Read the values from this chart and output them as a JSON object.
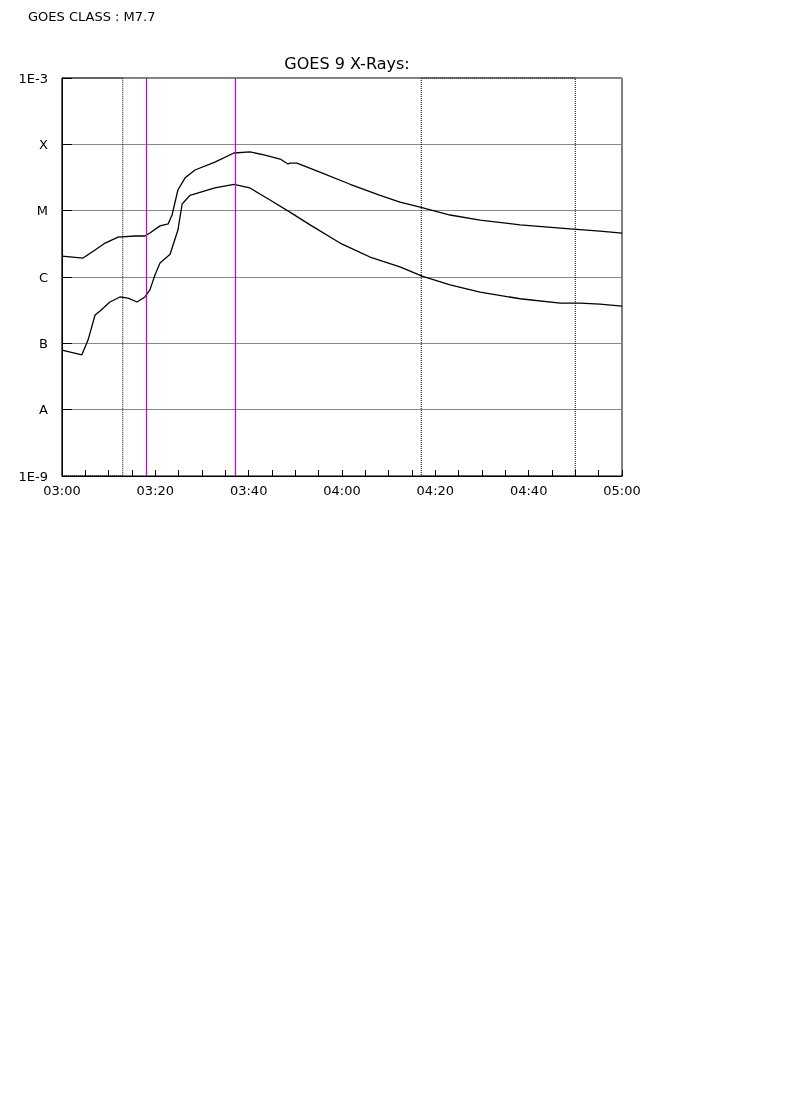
{
  "chart_data": {
    "type": "line",
    "title": "GOES 9 X-Rays:",
    "annotations": [
      "GOES CLASS : M7.7"
    ],
    "xlim": [
      3,
      5
    ],
    "xticks": [
      {
        "value": 3,
        "label": "03:00"
      },
      {
        "value": 3.0833,
        "label": null
      },
      {
        "value": 3.1667,
        "label": null
      },
      {
        "value": 3.25,
        "label": null
      },
      {
        "value": 3.3333,
        "label": "03:20"
      },
      {
        "value": 3.4167,
        "label": null
      },
      {
        "value": 3.5,
        "label": null
      },
      {
        "value": 3.5833,
        "label": null
      },
      {
        "value": 3.6667,
        "label": "03:40"
      },
      {
        "value": 3.75,
        "label": null
      },
      {
        "value": 3.8333,
        "label": null
      },
      {
        "value": 3.9167,
        "label": null
      },
      {
        "value": 4,
        "label": "04:00"
      },
      {
        "value": 4.0833,
        "label": null
      },
      {
        "value": 4.1667,
        "label": null
      },
      {
        "value": 4.25,
        "label": null
      },
      {
        "value": 4.3333,
        "label": "04:20"
      },
      {
        "value": 4.4167,
        "label": null
      },
      {
        "value": 4.5,
        "label": null
      },
      {
        "value": 4.5833,
        "label": null
      },
      {
        "value": 4.6667,
        "label": "04:40"
      },
      {
        "value": 4.75,
        "label": null
      },
      {
        "value": 4.8333,
        "label": null
      },
      {
        "value": 4.9167,
        "label": null
      },
      {
        "value": 5,
        "label": "05:00"
      }
    ],
    "ylim": [
      1e-09,
      0.001
    ],
    "yticks": [
      {
        "value": 1e-09,
        "label": "1E-9"
      },
      {
        "value": 1e-08,
        "label": "A"
      },
      {
        "value": 1e-07,
        "label": "B"
      },
      {
        "value": 1e-06,
        "label": "C"
      },
      {
        "value": 1e-05,
        "label": "M"
      },
      {
        "value": 0.0001,
        "label": "X"
      },
      {
        "value": 0.001,
        "label": "1E-3"
      }
    ],
    "log": "y",
    "grid": "y",
    "marker": "none",
    "series": [
      {
        "color": "#000000",
        "x": [
          3.0,
          3.075,
          3.118,
          3.154,
          3.2,
          3.261,
          3.296,
          3.314,
          3.35,
          3.379,
          3.393,
          3.414,
          3.439,
          3.475,
          3.546,
          3.614,
          3.671,
          3.725,
          3.779,
          3.807,
          3.814,
          3.839,
          3.921,
          4.029,
          4.136,
          4.207,
          4.279,
          4.386,
          4.493,
          4.636,
          4.814,
          4.921,
          5.0
        ],
        "values": [
          2.07e-06,
          1.93e-06,
          2.55e-06,
          3.25e-06,
          4e-06,
          4.15e-06,
          4.15e-06,
          4.6e-06,
          5.9e-06,
          6.3e-06,
          8.6e-06,
          2.05e-05,
          3.1e-05,
          4.1e-05,
          5.4e-05,
          7.4e-05,
          7.7e-05,
          6.9e-05,
          6e-05,
          5.05e-05,
          5.2e-05,
          5.2e-05,
          3.8e-05,
          2.5e-05,
          1.7e-05,
          1.35e-05,
          1.13e-05,
          8.6e-06,
          7.2e-06,
          6.1e-06,
          5.3e-06,
          4.9e-06,
          4.6e-06
        ]
      },
      {
        "color": "#000000",
        "x": [
          3.0,
          3.071,
          3.093,
          3.118,
          3.136,
          3.171,
          3.207,
          3.236,
          3.268,
          3.296,
          3.314,
          3.332,
          3.35,
          3.386,
          3.414,
          3.429,
          3.457,
          3.546,
          3.614,
          3.671,
          3.743,
          3.814,
          3.886,
          3.993,
          4.1,
          4.207,
          4.286,
          4.386,
          4.493,
          4.636,
          4.779,
          4.85,
          4.921,
          5.0
        ],
        "values": [
          7.9e-08,
          6.7e-08,
          1.12e-07,
          2.67e-07,
          3.07e-07,
          4.2e-07,
          5e-07,
          4.8e-07,
          4.2e-07,
          5e-07,
          6.4e-07,
          1.07e-06,
          1.63e-06,
          2.2e-06,
          5.1e-06,
          1.26e-05,
          1.7e-05,
          2.2e-05,
          2.5e-05,
          2.2e-05,
          1.45e-05,
          9.5e-06,
          6.1e-06,
          3.25e-06,
          2e-06,
          1.42e-06,
          1.03e-06,
          7.6e-07,
          5.9e-07,
          4.7e-07,
          4.05e-07,
          4.05e-07,
          3.9e-07,
          3.65e-07
        ]
      }
    ],
    "ref_lines": [
      {
        "axis": "x",
        "value": 3.3,
        "color": "#cc00cc"
      },
      {
        "axis": "x",
        "value": 3.617,
        "color": "#cc00cc"
      }
    ],
    "bands": [
      {
        "axis": "x",
        "from": 3.0,
        "to": 3.217,
        "color": "#000000"
      },
      {
        "axis": "x",
        "from": 4.283,
        "to": 4.833,
        "color": "#000000"
      }
    ]
  }
}
